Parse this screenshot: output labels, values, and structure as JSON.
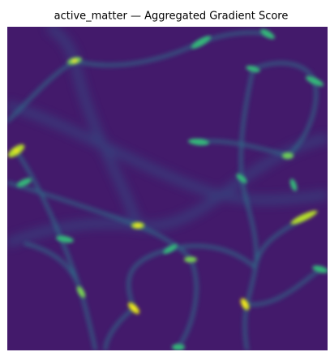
{
  "title": "active_matter — Aggregated Gradient Score"
}
